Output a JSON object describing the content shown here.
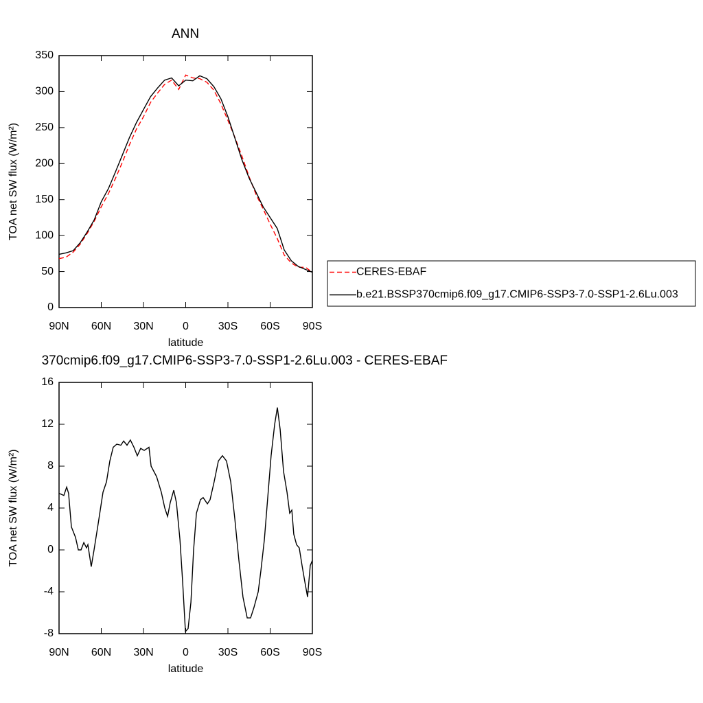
{
  "chart_data": [
    {
      "type": "line",
      "title": "ANN",
      "xlabel": "latitude",
      "ylabel": "TOA net SW flux (W/m²)",
      "x": [
        90,
        85,
        80,
        75,
        70,
        65,
        60,
        55,
        50,
        45,
        40,
        35,
        30,
        25,
        20,
        15,
        10,
        5,
        0,
        -5,
        -10,
        -15,
        -20,
        -25,
        -30,
        -35,
        -40,
        -45,
        -50,
        -55,
        -60,
        -65,
        -70,
        -75,
        -80,
        -85,
        -90
      ],
      "series": [
        {
          "name": "CERES-EBAF",
          "color": "#ff0000",
          "style": "dashed",
          "values": [
            68,
            70,
            77,
            88,
            103,
            120,
            140,
            158,
            179,
            202,
            226,
            248,
            265,
            285,
            298,
            310,
            316,
            303,
            323,
            319,
            318,
            313,
            302,
            283,
            260,
            236,
            210,
            182,
            157,
            137,
            116,
            96,
            73,
            62,
            56,
            56,
            49
          ]
        },
        {
          "name": "b.e21.BSSP370cmip6.f09_g17.CMIP6-SSP3-7.0-SSP1-2.6Lu.003",
          "color": "#000000",
          "style": "solid",
          "values": [
            74,
            76,
            79,
            90,
            105,
            122,
            147,
            165,
            188,
            212,
            236,
            257,
            275,
            293,
            305,
            316,
            319,
            308,
            316,
            315,
            322,
            318,
            307,
            290,
            265,
            235,
            205,
            180,
            160,
            140,
            125,
            110,
            80,
            65,
            57,
            53,
            49
          ]
        }
      ],
      "xlim": [
        90,
        -90
      ],
      "xticks": [
        {
          "value": 90,
          "label": "90N"
        },
        {
          "value": 60,
          "label": "60N"
        },
        {
          "value": 30,
          "label": "30N"
        },
        0,
        {
          "value": -30,
          "label": "30S"
        },
        {
          "value": -60,
          "label": "60S"
        },
        {
          "value": -90,
          "label": "90S"
        }
      ],
      "ylim": [
        0,
        350
      ],
      "yticks": [
        0,
        50,
        100,
        150,
        200,
        250,
        300,
        350
      ],
      "legend": "right"
    },
    {
      "type": "line",
      "title": "370cmip6.f09_g17.CMIP6-SSP3-7.0-SSP1-2.6Lu.003 - CERES-EBAF",
      "xlabel": "latitude",
      "ylabel": "TOA net SW flux (W/m²)",
      "x": [
        90,
        86.6,
        84.6,
        83.2,
        81.2,
        78.3,
        76.3,
        74.4,
        72.4,
        70.5,
        69.5,
        67.1,
        65.1,
        62.2,
        58.8,
        56.3,
        53.9,
        51.5,
        49.0,
        46.1,
        44.1,
        41.7,
        39.3,
        36.8,
        34.4,
        32.0,
        29.5,
        26.1,
        24.6,
        20.7,
        17.3,
        14.9,
        12.9,
        11.0,
        8.5,
        6.6,
        4.1,
        2.2,
        0.2,
        -1.7,
        -3.7,
        -5.6,
        -7.6,
        -10.5,
        -12.4,
        -15.4,
        -17.3,
        -20.2,
        -23.2,
        -26.1,
        -29.0,
        -32.0,
        -34.9,
        -37.8,
        -40.7,
        -43.7,
        -46.1,
        -48.5,
        -51.5,
        -53.4,
        -55.9,
        -58.3,
        -60.7,
        -63.2,
        -65.1,
        -67.1,
        -69.5,
        -72.0,
        -73.9,
        -75.4,
        -76.8,
        -78.8,
        -80.7,
        -82.7,
        -84.6,
        -86.6,
        -88.5,
        -90
      ],
      "values": [
        5.4,
        5.2,
        6.0,
        5.4,
        2.2,
        1.2,
        0,
        0,
        0.7,
        0.2,
        0.5,
        -1.6,
        0,
        2.5,
        5.5,
        6.5,
        8.5,
        9.8,
        10.1,
        10.0,
        10.4,
        10.0,
        10.5,
        9.8,
        9.0,
        9.7,
        9.5,
        9.8,
        8.0,
        7.0,
        5.5,
        4.0,
        3.2,
        4.5,
        5.7,
        4.5,
        1.0,
        -3,
        -7.8,
        -7.5,
        -5,
        0,
        3.5,
        4.8,
        5.0,
        4.4,
        4.8,
        6.5,
        8.5,
        9.0,
        8.5,
        6.5,
        3.0,
        -1.0,
        -4.5,
        -6.5,
        -6.5,
        -5.5,
        -4.0,
        -2.0,
        1.0,
        5.0,
        9.0,
        12.0,
        13.6,
        11.5,
        7.5,
        5.5,
        3.5,
        3.8,
        1.5,
        0.5,
        0.2,
        -1.5,
        -3.0,
        -4.5,
        -1.5,
        -1.0
      ],
      "color": "#000000",
      "xlim": [
        90,
        -90
      ],
      "xticks": [
        {
          "value": 90,
          "label": "90N"
        },
        {
          "value": 60,
          "label": "60N"
        },
        {
          "value": 30,
          "label": "30N"
        },
        0,
        {
          "value": -30,
          "label": "30S"
        },
        {
          "value": -60,
          "label": "60S"
        },
        {
          "value": -90,
          "label": "90S"
        }
      ],
      "ylim": [
        -8,
        16
      ],
      "yticks": [
        -8,
        -4,
        0,
        4,
        8,
        12,
        16
      ]
    }
  ]
}
